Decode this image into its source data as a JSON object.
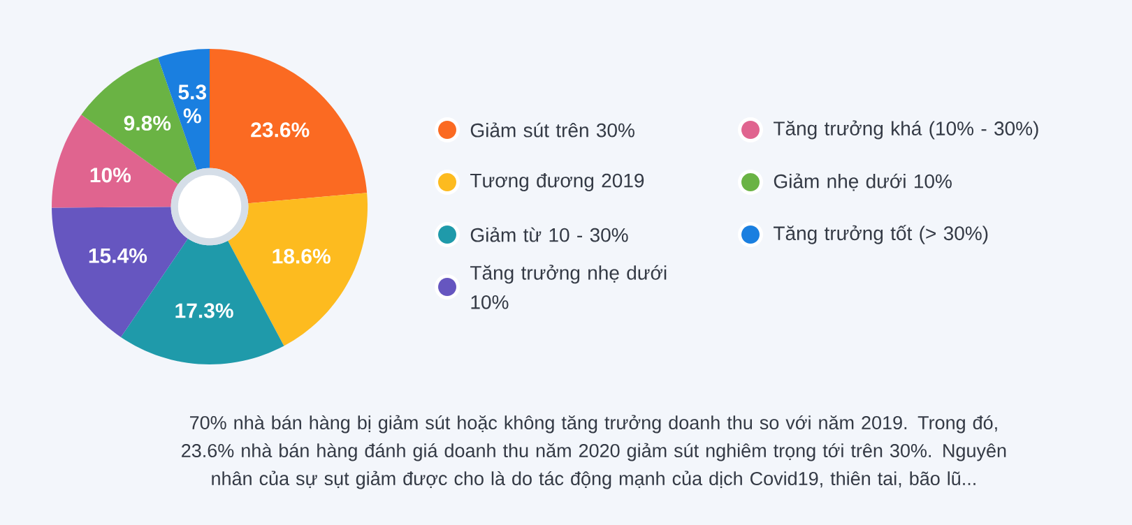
{
  "chart_data": {
    "type": "donut",
    "categories": [
      "Giảm sút trên 30%",
      "Tương đương 2019",
      "Giảm từ 10 - 30%",
      "Tăng trưởng nhẹ dưới 10%",
      "Tăng trưởng khá (10% - 30%)",
      "Giảm nhẹ dưới 10%",
      "Tăng trưởng tốt (> 30%)"
    ],
    "values": [
      23.6,
      18.6,
      17.3,
      15.4,
      10,
      9.8,
      5.3
    ],
    "value_labels": [
      "23.6%",
      "18.6%",
      "17.3%",
      "15.4%",
      "10%",
      "9.8%",
      "5.3 %"
    ],
    "colors": [
      "#fb6a22",
      "#fdbb1f",
      "#1f9aaa",
      "#6656c0",
      "#e0648f",
      "#6ab344",
      "#1a7fe0"
    ],
    "legend": "right",
    "annotations": [
      "70% nhà bán hàng bị giảm sút hoặc không tăng trưởng doanh thu so với năm 2019. Trong đó, 23.6% nhà bán hàng đánh giá doanh thu năm 2020 giảm sút nghiêm trọng tới trên 30%. Nguyên nhân của sự sụt giảm được cho là do tác động mạnh của dịch Covid19, thiên tai, bão lũ..."
    ]
  }
}
